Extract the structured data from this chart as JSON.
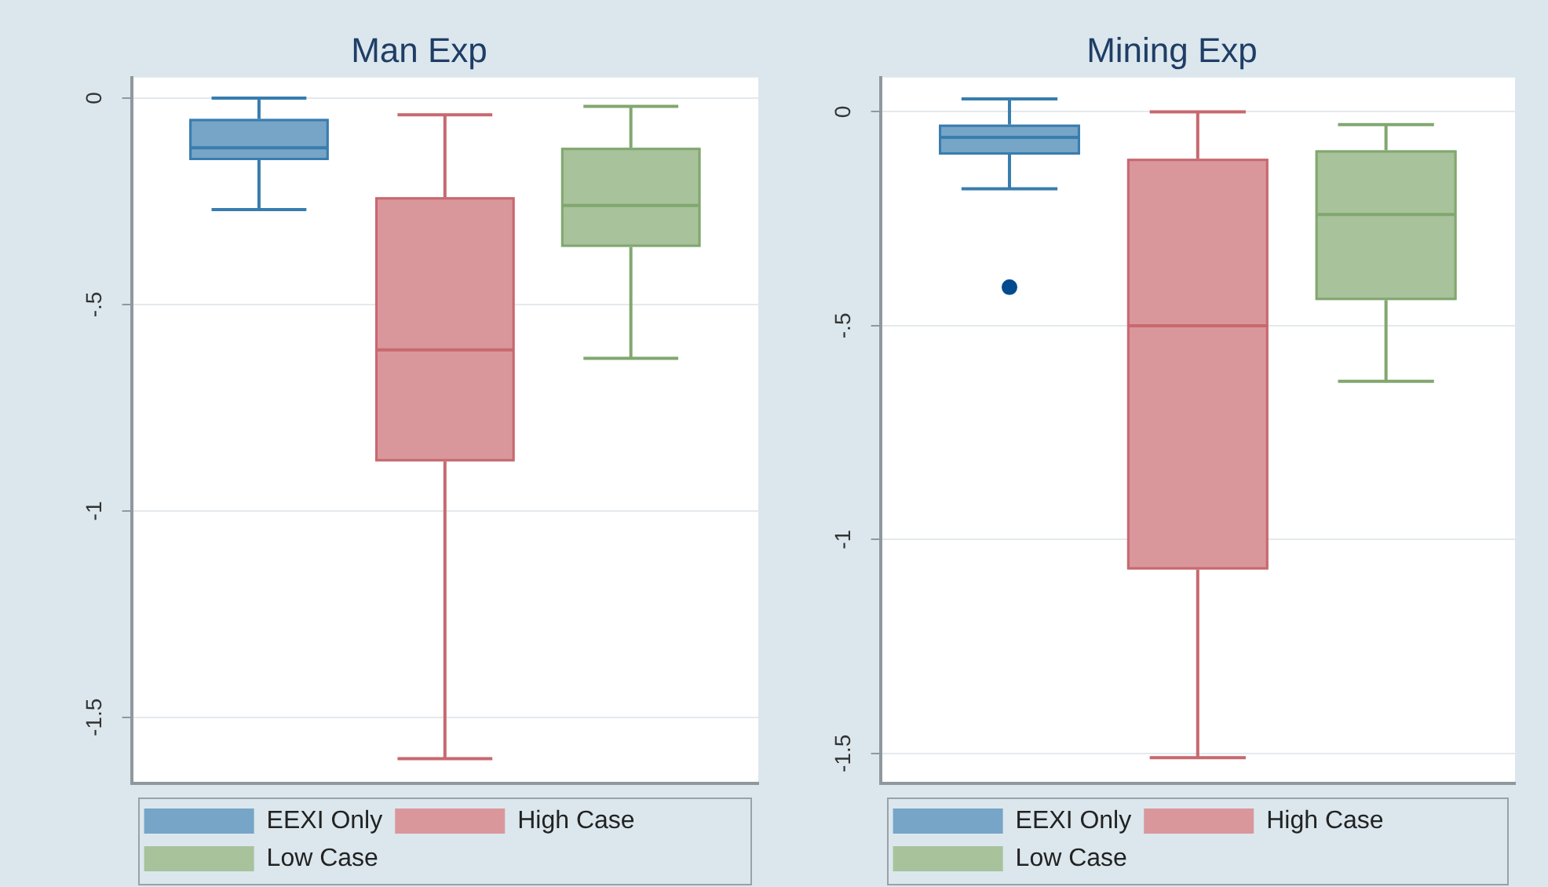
{
  "chart_data": [
    {
      "type": "box",
      "title": "Man Exp",
      "categories": [
        null
      ],
      "series": [
        {
          "name": "EEXI Only",
          "color": "#76a5c7",
          "boxes": [
            {
              "low": -0.27,
              "q1": -0.15,
              "median": -0.12,
              "q3": -0.05,
              "high": 0.0
            }
          ]
        },
        {
          "name": "High Case",
          "color": "#d9979c",
          "boxes": [
            {
              "low": -1.6,
              "q1": -0.88,
              "median": -0.61,
              "q3": -0.24,
              "high": -0.04
            }
          ]
        },
        {
          "name": "Low Case",
          "color": "#a8c29c",
          "boxes": [
            {
              "low": -0.63,
              "q1": -0.36,
              "median": -0.26,
              "q3": -0.12,
              "high": -0.02
            }
          ]
        }
      ],
      "ylim": [
        -1.66,
        0.05
      ],
      "yticks": [
        0,
        {
          "value": -0.5,
          "label": "-.5"
        },
        -1,
        -1.5
      ],
      "grid": "y",
      "legend": "bottom",
      "tick_labels": "y"
    },
    {
      "type": "box",
      "title": "Mining Exp",
      "categories": [
        null
      ],
      "series": [
        {
          "name": "EEXI Only",
          "color": "#76a5c7",
          "boxes": [
            {
              "low": -0.18,
              "q1": -0.1,
              "median": -0.06,
              "q3": -0.03,
              "high": 0.03,
              "outliers": [
                -0.41
              ]
            }
          ]
        },
        {
          "name": "High Case",
          "color": "#d9979c",
          "boxes": [
            {
              "low": -1.51,
              "q1": -1.07,
              "median": -0.5,
              "q3": -0.11,
              "high": 0.0
            }
          ]
        },
        {
          "name": "Low Case",
          "color": "#a8c29c",
          "boxes": [
            {
              "low": -0.63,
              "q1": -0.44,
              "median": -0.24,
              "q3": -0.09,
              "high": -0.03
            }
          ]
        }
      ],
      "ylim": [
        -1.57,
        0.08
      ],
      "yticks": [
        0,
        {
          "value": -0.5,
          "label": "-.5"
        },
        -1,
        -1.5
      ],
      "grid": "y",
      "legend": "bottom",
      "tick_labels": "y"
    }
  ]
}
